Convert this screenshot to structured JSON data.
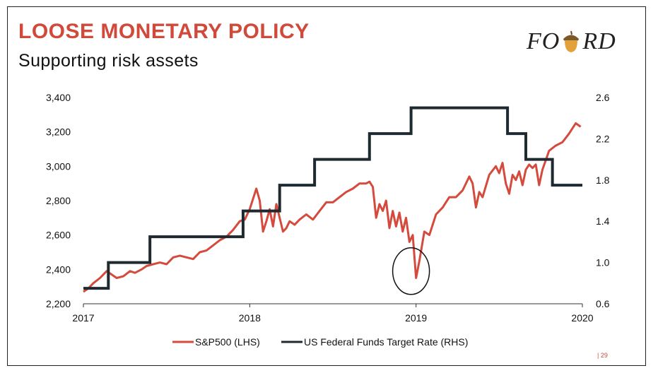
{
  "slide": {
    "title": "LOOSE MONETARY POLICY",
    "subtitle": "Supporting risk assets",
    "logo": {
      "left": "FO",
      "right": "RD"
    },
    "page_number": "| 29"
  },
  "colors": {
    "accent": "#d0493a",
    "sp500": "#d44a3c",
    "fed": "#1f2a30"
  },
  "chart_data": {
    "type": "line",
    "title": "",
    "x_ticks": [
      "2017",
      "2018",
      "2019",
      "2020"
    ],
    "x_tick_values": [
      2017,
      2018,
      2019,
      2020
    ],
    "xlim": [
      2017,
      2020
    ],
    "y_left": {
      "ticks": [
        "2,200",
        "2,400",
        "2,600",
        "2,800",
        "3,000",
        "3,200",
        "3,400"
      ],
      "tick_values": [
        2200,
        2400,
        2600,
        2800,
        3000,
        3200,
        3400
      ],
      "lim": [
        2200,
        3400
      ]
    },
    "y_right": {
      "ticks": [
        "0.6",
        "1.0",
        "1.4",
        "1.8",
        "2.2",
        "2.6"
      ],
      "tick_values": [
        0.6,
        1.0,
        1.4,
        1.8,
        2.2,
        2.6
      ],
      "lim": [
        0.6,
        2.6
      ]
    },
    "series": [
      {
        "name": "S&P500 (LHS)",
        "axis": "left",
        "x": [
          2017.0,
          2017.03,
          2017.06,
          2017.1,
          2017.14,
          2017.17,
          2017.2,
          2017.24,
          2017.28,
          2017.31,
          2017.35,
          2017.38,
          2017.42,
          2017.46,
          2017.5,
          2017.54,
          2017.58,
          2017.62,
          2017.66,
          2017.7,
          2017.74,
          2017.78,
          2017.82,
          2017.86,
          2017.9,
          2017.94,
          2017.97,
          2018.0,
          2018.02,
          2018.04,
          2018.06,
          2018.08,
          2018.1,
          2018.12,
          2018.14,
          2018.16,
          2018.18,
          2018.2,
          2018.22,
          2018.24,
          2018.27,
          2018.3,
          2018.34,
          2018.38,
          2018.42,
          2018.46,
          2018.5,
          2018.54,
          2018.58,
          2018.62,
          2018.66,
          2018.7,
          2018.72,
          2018.74,
          2018.76,
          2018.78,
          2018.8,
          2018.82,
          2018.84,
          2018.86,
          2018.88,
          2018.9,
          2018.92,
          2018.94,
          2018.96,
          2018.98,
          2019.0,
          2019.02,
          2019.05,
          2019.08,
          2019.12,
          2019.16,
          2019.2,
          2019.24,
          2019.28,
          2019.32,
          2019.34,
          2019.36,
          2019.38,
          2019.4,
          2019.44,
          2019.48,
          2019.5,
          2019.52,
          2019.54,
          2019.56,
          2019.58,
          2019.6,
          2019.62,
          2019.64,
          2019.66,
          2019.68,
          2019.7,
          2019.72,
          2019.74,
          2019.76,
          2019.8,
          2019.84,
          2019.88,
          2019.92,
          2019.96,
          2019.99
        ],
        "values": [
          2270,
          2290,
          2320,
          2350,
          2390,
          2370,
          2350,
          2360,
          2390,
          2380,
          2400,
          2420,
          2430,
          2440,
          2430,
          2470,
          2480,
          2470,
          2460,
          2500,
          2510,
          2540,
          2570,
          2590,
          2630,
          2680,
          2690,
          2750,
          2810,
          2870,
          2800,
          2620,
          2680,
          2750,
          2650,
          2780,
          2700,
          2620,
          2640,
          2680,
          2660,
          2690,
          2720,
          2690,
          2740,
          2790,
          2790,
          2820,
          2850,
          2870,
          2900,
          2900,
          2910,
          2880,
          2700,
          2780,
          2740,
          2800,
          2640,
          2740,
          2650,
          2730,
          2620,
          2700,
          2560,
          2600,
          2350,
          2450,
          2620,
          2600,
          2720,
          2760,
          2820,
          2820,
          2860,
          2940,
          2900,
          2760,
          2850,
          2820,
          2950,
          3000,
          2960,
          3020,
          2900,
          2840,
          2950,
          2920,
          2970,
          2890,
          2980,
          3010,
          2990,
          3010,
          2890,
          2980,
          3090,
          3120,
          3140,
          3190,
          3250,
          3230
        ],
        "color": "#d44a3c"
      },
      {
        "name": "US Federal Funds Target Rate (RHS)",
        "axis": "right",
        "step": true,
        "x": [
          2017.0,
          2017.15,
          2017.4,
          2017.96,
          2018.18,
          2018.39,
          2018.72,
          2018.97,
          2019.55,
          2019.66,
          2019.82,
          2020.0
        ],
        "values": [
          0.75,
          1.0,
          1.25,
          1.5,
          1.75,
          2.0,
          2.25,
          2.5,
          2.25,
          2.0,
          1.75,
          1.75
        ],
        "color": "#1f2a30"
      }
    ],
    "annotation": {
      "type": "circle",
      "x": 2018.97,
      "y": 2390,
      "note": "December 2018 trough"
    },
    "legend": {
      "position": "bottom",
      "items": [
        "S&P500 (LHS)",
        "US Federal Funds Target Rate (RHS)"
      ]
    },
    "grid": false
  }
}
